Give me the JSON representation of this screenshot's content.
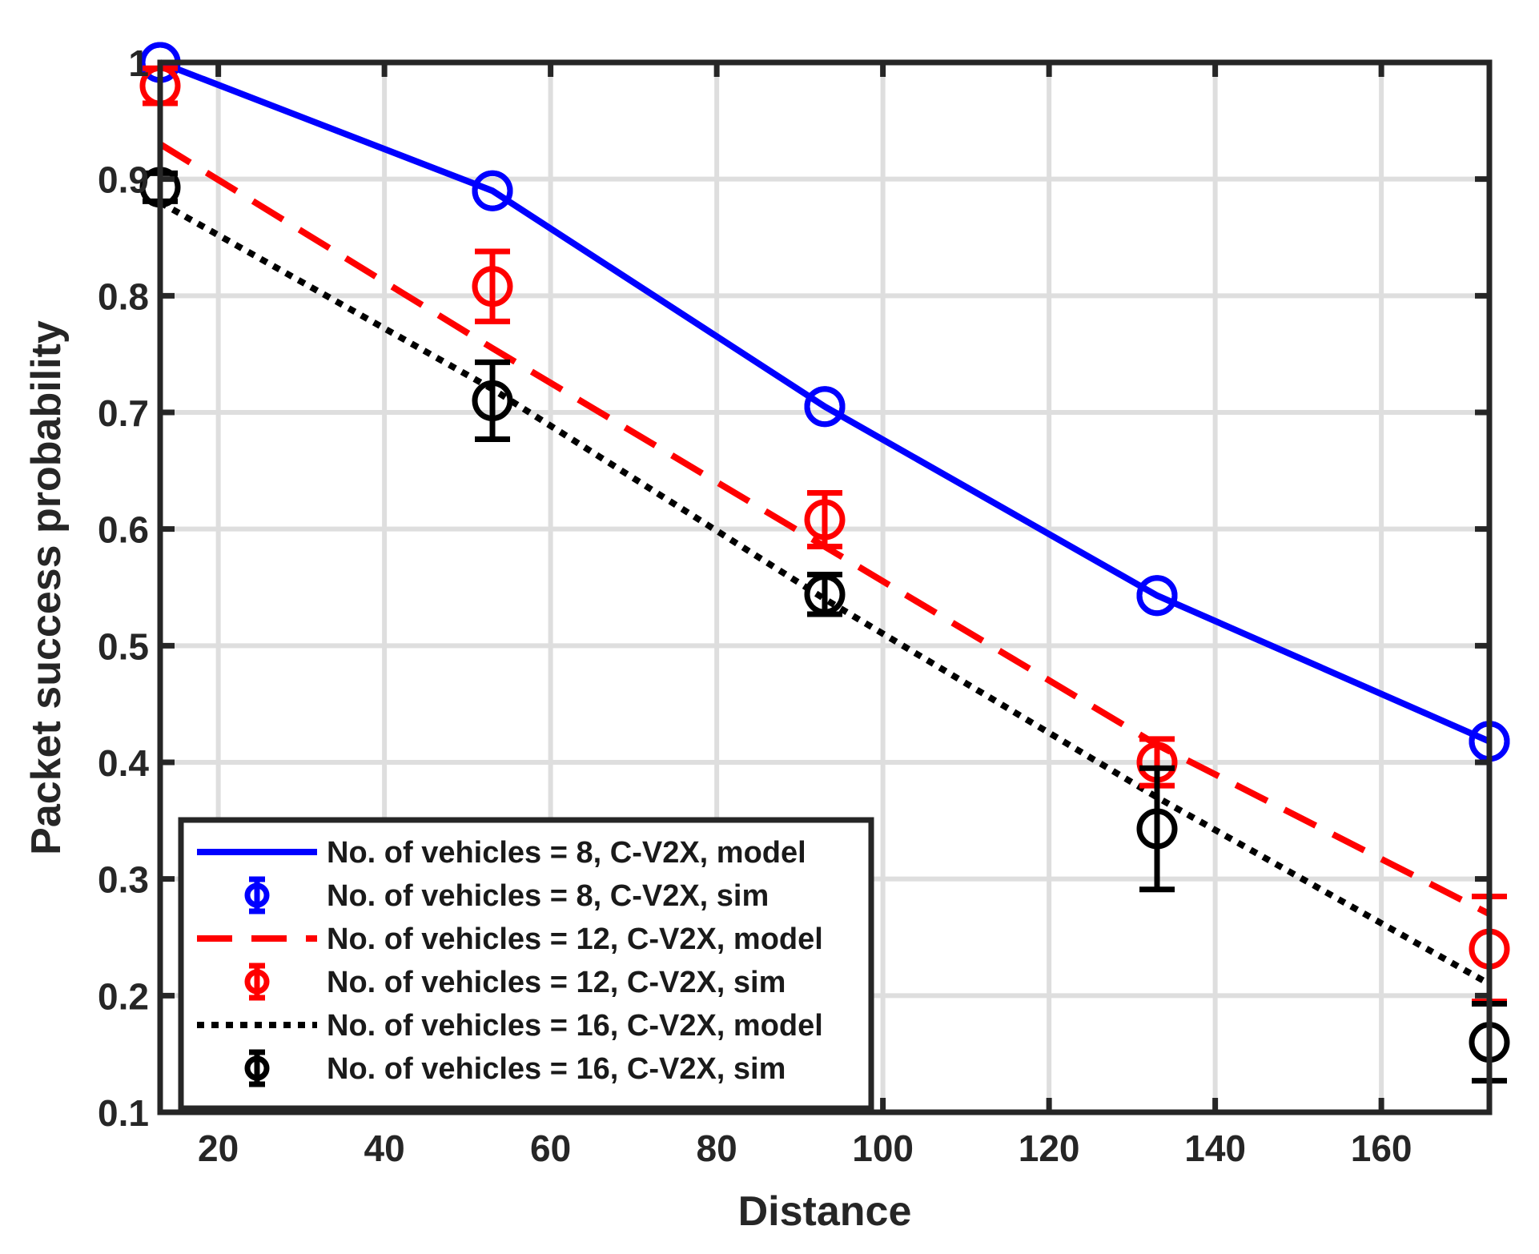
{
  "chart_data": {
    "type": "line",
    "title": "",
    "xlabel": "Distance",
    "ylabel": "Packet success probability",
    "xlim": [
      13,
      173
    ],
    "ylim": [
      0.1,
      1.0
    ],
    "xticks": [
      20,
      40,
      60,
      80,
      100,
      120,
      140,
      160
    ],
    "yticks": [
      0.1,
      0.2,
      0.3,
      0.4,
      0.5,
      0.6,
      0.7,
      0.8,
      0.9,
      1.0
    ],
    "xtick_labels": [
      "20",
      "40",
      "60",
      "80",
      "100",
      "120",
      "140",
      "160"
    ],
    "ytick_labels": [
      "0.1",
      "0.2",
      "0.3",
      "0.4",
      "0.5",
      "0.6",
      "0.7",
      "0.8",
      "0.9",
      "1"
    ],
    "grid": true,
    "legend_position": "bottom-left",
    "x": [
      13,
      53,
      93,
      133,
      173
    ],
    "series": [
      {
        "name": "No. of vehicles = 8, C-V2X, model",
        "kind": "line",
        "style": "solid",
        "color": "#0000ff",
        "marker": "circle",
        "values": [
          1.0,
          0.89,
          0.705,
          0.543,
          0.418
        ]
      },
      {
        "name": "No. of vehicles = 8, C-V2X, sim",
        "kind": "errorbar",
        "color": "#0000ff",
        "values": [
          1.0,
          0.89,
          0.705,
          0.543,
          0.418
        ],
        "errors": [
          0.0,
          0.0,
          0.0,
          0.0,
          0.0
        ]
      },
      {
        "name": "No. of vehicles = 12, C-V2X, model",
        "kind": "line",
        "style": "dashed",
        "color": "#ff0000",
        "values": [
          0.93,
          0.755,
          0.585,
          0.415,
          0.27
        ]
      },
      {
        "name": "No. of vehicles = 12, C-V2X, sim",
        "kind": "errorbar",
        "color": "#ff0000",
        "values": [
          0.98,
          0.808,
          0.608,
          0.4,
          0.24
        ],
        "errors": [
          0.015,
          0.03,
          0.023,
          0.02,
          0.045
        ]
      },
      {
        "name": "No. of vehicles = 16, C-V2X, model",
        "kind": "line",
        "style": "dotted",
        "color": "#000000",
        "values": [
          0.88,
          0.72,
          0.54,
          0.37,
          0.21
        ]
      },
      {
        "name": "No. of vehicles = 16, C-V2X, sim",
        "kind": "errorbar",
        "color": "#000000",
        "values": [
          0.893,
          0.71,
          0.544,
          0.343,
          0.16
        ],
        "errors": [
          0.012,
          0.033,
          0.017,
          0.052,
          0.033
        ]
      }
    ]
  }
}
